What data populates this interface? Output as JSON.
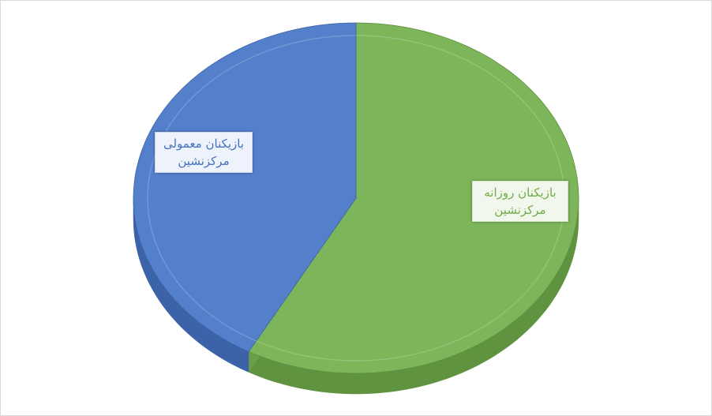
{
  "chart_data": {
    "type": "pie",
    "style": "3d",
    "start": "top",
    "direction": "clockwise",
    "slices": [
      {
        "label": "بازیکنان روزانه مرکزنشین",
        "value": 58,
        "color": "#7db55a",
        "side_color": "#5f9340",
        "text_color": "#70ad47"
      },
      {
        "label": "بازیکنان معمولی مرکزنشین",
        "value": 42,
        "color": "#5480cb",
        "side_color": "#3c62a8",
        "text_color": "#4472c4"
      }
    ],
    "legend": "none",
    "data_labels": "category-name"
  }
}
